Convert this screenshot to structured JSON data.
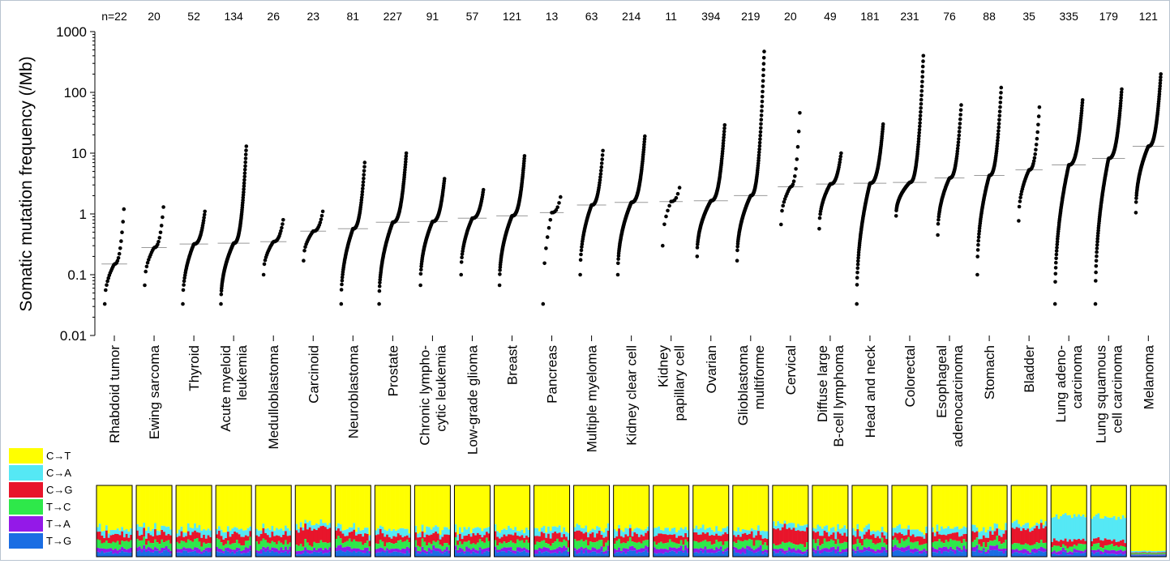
{
  "chart_data": {
    "type": "scatter",
    "title": "",
    "xlabel": "",
    "ylabel": "Somatic mutation frequency (/Mb)",
    "y_scale": "log",
    "ylim": [
      0.01,
      1000
    ],
    "yticks": [
      "1000",
      "100",
      "10",
      "1",
      "0.1",
      "0.01"
    ],
    "grid": false,
    "count_prefix": "n=",
    "categories": [
      {
        "label": [
          "Rhabdoid tumor"
        ],
        "n": 22,
        "median": 0.15,
        "min": 0.033,
        "max": 1.2
      },
      {
        "label": [
          "Ewing sarcoma"
        ],
        "n": 20,
        "median": 0.28,
        "min": 0.067,
        "max": 1.3
      },
      {
        "label": [
          "Thyroid"
        ],
        "n": 52,
        "median": 0.32,
        "min": 0.033,
        "max": 1.1
      },
      {
        "label": [
          "Acute myeloid",
          "leukemia"
        ],
        "n": 134,
        "median": 0.33,
        "min": 0.033,
        "max": 13
      },
      {
        "label": [
          "Medulloblastoma"
        ],
        "n": 26,
        "median": 0.35,
        "min": 0.1,
        "max": 0.8
      },
      {
        "label": [
          "Carcinoid"
        ],
        "n": 23,
        "median": 0.52,
        "min": 0.17,
        "max": 1.1
      },
      {
        "label": [
          "Neuroblastoma"
        ],
        "n": 81,
        "median": 0.57,
        "min": 0.033,
        "max": 7
      },
      {
        "label": [
          "Prostate"
        ],
        "n": 227,
        "median": 0.73,
        "min": 0.033,
        "max": 10
      },
      {
        "label": [
          "Chronic lympho-",
          "cytic leukemia"
        ],
        "n": 91,
        "median": 0.75,
        "min": 0.067,
        "max": 3.8
      },
      {
        "label": [
          "Low-grade glioma"
        ],
        "n": 57,
        "median": 0.85,
        "min": 0.1,
        "max": 2.5
      },
      {
        "label": [
          "Breast"
        ],
        "n": 121,
        "median": 0.93,
        "min": 0.067,
        "max": 9
      },
      {
        "label": [
          "Pancreas"
        ],
        "n": 13,
        "median": 1.05,
        "min": 0.033,
        "max": 1.9
      },
      {
        "label": [
          "Multiple myeloma"
        ],
        "n": 63,
        "median": 1.4,
        "min": 0.1,
        "max": 11
      },
      {
        "label": [
          "Kidney clear cell"
        ],
        "n": 214,
        "median": 1.55,
        "min": 0.1,
        "max": 19
      },
      {
        "label": [
          "Kidney",
          "papillary cell"
        ],
        "n": 11,
        "median": 1.6,
        "min": 0.3,
        "max": 2.7
      },
      {
        "label": [
          "Ovarian"
        ],
        "n": 394,
        "median": 1.65,
        "min": 0.2,
        "max": 29
      },
      {
        "label": [
          "Glioblastoma",
          "multiforme"
        ],
        "n": 219,
        "median": 2.0,
        "min": 0.17,
        "max": 470
      },
      {
        "label": [
          "Cervical"
        ],
        "n": 20,
        "median": 2.8,
        "min": 0.67,
        "max": 46
      },
      {
        "label": [
          "Diffuse large",
          "B-cell lymphoma"
        ],
        "n": 49,
        "median": 3.1,
        "min": 0.57,
        "max": 10
      },
      {
        "label": [
          "Head and neck"
        ],
        "n": 181,
        "median": 3.2,
        "min": 0.033,
        "max": 30
      },
      {
        "label": [
          "Colorectal"
        ],
        "n": 231,
        "median": 3.3,
        "min": 0.93,
        "max": 400
      },
      {
        "label": [
          "Esophageal",
          "adenocarcinoma"
        ],
        "n": 76,
        "median": 3.9,
        "min": 0.45,
        "max": 62
      },
      {
        "label": [
          "Stomach"
        ],
        "n": 88,
        "median": 4.3,
        "min": 0.1,
        "max": 120
      },
      {
        "label": [
          "Bladder"
        ],
        "n": 35,
        "median": 5.3,
        "min": 0.77,
        "max": 57
      },
      {
        "label": [
          "Lung adeno-",
          "carcinoma"
        ],
        "n": 335,
        "median": 6.4,
        "min": 0.033,
        "max": 75
      },
      {
        "label": [
          "Lung squamous",
          "cell carcinoma"
        ],
        "n": 179,
        "median": 8.2,
        "min": 0.033,
        "max": 113
      },
      {
        "label": [
          "Melanoma"
        ],
        "n": 121,
        "median": 13,
        "min": 1.05,
        "max": 200
      }
    ],
    "spectrum_legend": [
      {
        "label": "C→T",
        "color": "#ffff00"
      },
      {
        "label": "C→A",
        "color": "#55e8f5"
      },
      {
        "label": "C→G",
        "color": "#e8152b"
      },
      {
        "label": "T→C",
        "color": "#2ee84a"
      },
      {
        "label": "T→A",
        "color": "#9419e8"
      },
      {
        "label": "T→G",
        "color": "#1a6de3"
      }
    ],
    "point_color": "#000000",
    "median_color": "#9a9a9a"
  }
}
